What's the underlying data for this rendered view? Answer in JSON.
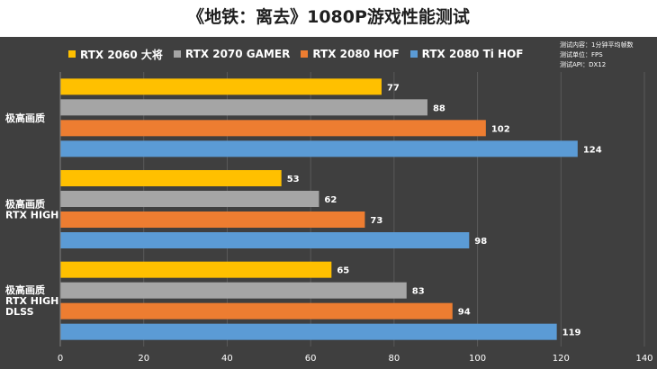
{
  "chart_data": {
    "type": "bar",
    "orientation": "horizontal",
    "title": "《地铁：离去》1080P游戏性能测试",
    "categories": [
      "极高画质",
      "极高画质\nRTX HIGH",
      "极高画质\nRTX HIGH\nDLSS"
    ],
    "series": [
      {
        "name": "RTX 2060 大将",
        "color": "#ffc000",
        "values": [
          77,
          53,
          65
        ]
      },
      {
        "name": "RTX 2070 GAMER",
        "color": "#a5a5a5",
        "values": [
          88,
          62,
          83
        ]
      },
      {
        "name": "RTX 2080 HOF",
        "color": "#ed7d31",
        "values": [
          102,
          73,
          94
        ]
      },
      {
        "name": "RTX 2080 Ti HOF",
        "color": "#5b9bd5",
        "values": [
          124,
          98,
          119
        ]
      }
    ],
    "xlim": [
      0,
      140
    ],
    "xticks": [
      0,
      20,
      40,
      60,
      80,
      100,
      120,
      140
    ],
    "xlabel": "",
    "ylabel": "",
    "grid": true,
    "legend_position": "top-left",
    "notes": [
      "测试内容：1分钟平均帧数",
      "测试单位：FPS",
      "测试API：DX12"
    ]
  }
}
